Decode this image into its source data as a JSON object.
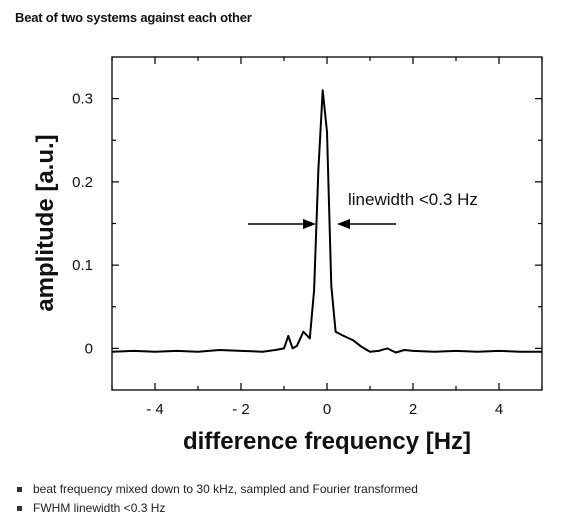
{
  "heading": "Beat of two systems against each other",
  "bullets": [
    "beat frequency mixed down to 30 kHz, sampled and Fourier transformed",
    "FWHM linewidth <0.3 Hz"
  ],
  "chart_data": {
    "type": "line",
    "title": "",
    "xlabel": "difference frequency [Hz]",
    "ylabel": "amplitude [a.u.]",
    "xlim": [
      -5,
      5
    ],
    "ylim": [
      -0.05,
      0.35
    ],
    "x_ticks": [
      -4,
      -2,
      0,
      2,
      4
    ],
    "x_tick_labels": [
      "- 4",
      "- 2",
      "0",
      "2",
      "4"
    ],
    "y_ticks": [
      0,
      0.1,
      0.2,
      0.3
    ],
    "y_tick_labels": [
      "0",
      "0.1",
      "0.2",
      "0.3"
    ],
    "grid": false,
    "legend": "none",
    "annotation": "linewidth <0.3 Hz",
    "line_color": "#000000",
    "series": [
      {
        "x": [
          -5.0,
          -4.5,
          -4.0,
          -3.5,
          -3.0,
          -2.5,
          -2.0,
          -1.5,
          -1.2,
          -1.0,
          -0.9,
          -0.8,
          -0.7,
          -0.55,
          -0.4,
          -0.3,
          -0.2,
          -0.1,
          0.0,
          0.1,
          0.2,
          0.35,
          0.6,
          0.8,
          1.0,
          1.2,
          1.4,
          1.6,
          1.8,
          2.0,
          2.5,
          3.0,
          3.5,
          4.0,
          4.5,
          5.0
        ],
        "y": [
          -0.004,
          -0.003,
          -0.004,
          -0.003,
          -0.004,
          -0.002,
          -0.003,
          -0.004,
          -0.002,
          0.0,
          0.015,
          0.0,
          0.003,
          0.02,
          0.012,
          0.07,
          0.215,
          0.31,
          0.26,
          0.075,
          0.02,
          0.016,
          0.01,
          0.002,
          -0.004,
          -0.003,
          0.0,
          -0.005,
          -0.002,
          -0.003,
          -0.004,
          -0.003,
          -0.004,
          -0.003,
          -0.004,
          -0.004
        ]
      }
    ]
  }
}
